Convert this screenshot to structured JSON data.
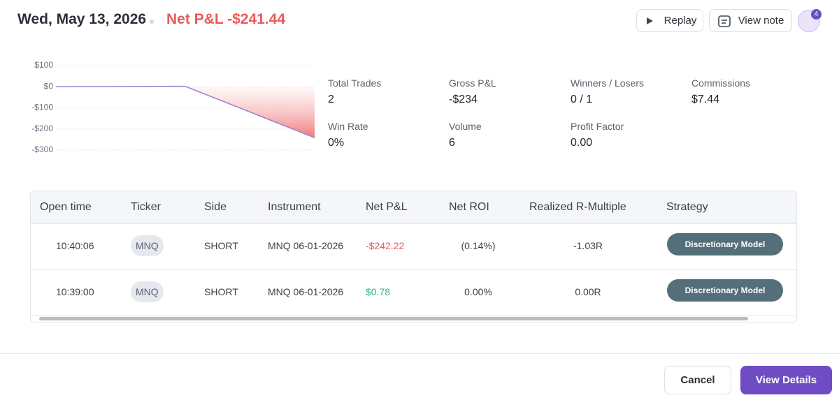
{
  "header": {
    "date": "Wed, May 13, 2026",
    "net_pnl": "Net P&L -$241.44",
    "replay": "Replay",
    "view_note": "View note",
    "avatar_badge": "4"
  },
  "chart_data": {
    "type": "line",
    "values": [
      0,
      2,
      -241.44
    ],
    "color": "#9b7fd0",
    "ylim": [
      -300,
      100
    ],
    "yticks": [
      {
        "value": 100,
        "label": "$100"
      },
      {
        "value": 0,
        "label": "$0"
      },
      {
        "value": -100,
        "label": "-$100"
      },
      {
        "value": -200,
        "label": "-$200"
      },
      {
        "value": -300,
        "label": "-$300"
      }
    ],
    "grid": true
  },
  "stats": [
    {
      "label": "Total Trades",
      "value": "2"
    },
    {
      "label": "Gross P&L",
      "value": "-$234"
    },
    {
      "label": "Winners / Losers",
      "value": "0 / 1"
    },
    {
      "label": "Commissions",
      "value": "$7.44"
    },
    {
      "label": "Win Rate",
      "value": "0%"
    },
    {
      "label": "Volume",
      "value": "6"
    },
    {
      "label": "Profit Factor",
      "value": "0.00"
    }
  ],
  "table": {
    "columns": [
      "Open time",
      "Ticker",
      "Side",
      "Instrument",
      "Net P&L",
      "Net ROI",
      "Realized R-Multiple",
      "Strategy"
    ],
    "rows": [
      [
        "10:40:06",
        "MNQ",
        "SHORT",
        "MNQ 06-01-2026",
        "-$242.22",
        "(0.14%)",
        "-1.03R",
        "Discretionary Model"
      ],
      [
        "10:39:00",
        "MNQ",
        "SHORT",
        "MNQ 06-01-2026",
        "$0.78",
        "0.00%",
        "0.00R",
        "Discretionary Model"
      ]
    ]
  },
  "footer": {
    "cancel": "Cancel",
    "view_details": "View Details"
  }
}
